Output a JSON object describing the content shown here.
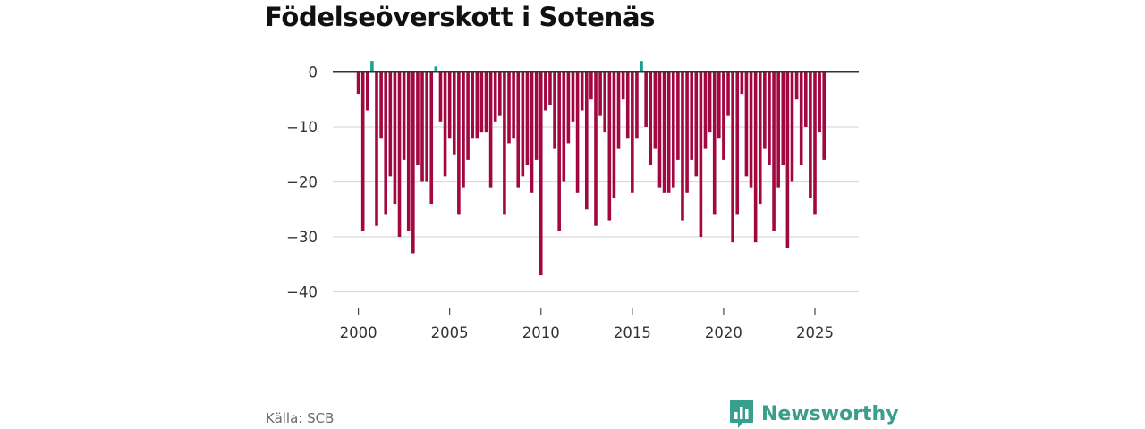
{
  "brand": {
    "name": "Newsworthy",
    "icon": "newsworthy-logo-icon",
    "color": "#3a9e8c"
  },
  "source": "Källa: SCB",
  "colors": {
    "negative": "#a3073f",
    "positive": "#1aa096",
    "grid": "#d9d9d9",
    "zero_line": "#333333"
  },
  "chart_data": {
    "type": "bar",
    "title": "Födelseöverskott i Sotenäs",
    "xlabel": "",
    "ylabel": "",
    "ylim": [
      -43,
      3
    ],
    "yticks": [
      0,
      -10,
      -20,
      -30,
      -40
    ],
    "ytick_labels": [
      "0",
      "−10",
      "−20",
      "−30",
      "−40"
    ],
    "xlim": [
      1998.6,
      2027.4
    ],
    "xticks": [
      2000,
      2005,
      2010,
      2015,
      2020,
      2025
    ],
    "xtick_labels": [
      "2000",
      "2005",
      "2010",
      "2015",
      "2020",
      "2025"
    ],
    "grid": true,
    "start": "2000-Q1",
    "frequency": "quarterly",
    "series": [
      {
        "name": "Födelseöverskott",
        "values": [
          -4,
          -29,
          -7,
          2,
          -28,
          -12,
          -26,
          -19,
          -24,
          -30,
          -16,
          -29,
          -33,
          -17,
          -20,
          -20,
          -24,
          1,
          -9,
          -19,
          -12,
          -15,
          -26,
          -21,
          -16,
          -12,
          -12,
          -11,
          -11,
          -21,
          -9,
          -8,
          -26,
          -13,
          -12,
          -21,
          -19,
          -17,
          -22,
          -16,
          -37,
          -7,
          -6,
          -14,
          -29,
          -20,
          -13,
          -9,
          -22,
          -7,
          -25,
          -5,
          -28,
          -8,
          -11,
          -27,
          -23,
          -14,
          -5,
          -12,
          -22,
          -12,
          2,
          -10,
          -17,
          -14,
          -21,
          -22,
          -22,
          -21,
          -16,
          -27,
          -22,
          -16,
          -19,
          -30,
          -14,
          -11,
          -26,
          -12,
          -16,
          -8,
          -31,
          -26,
          -4,
          -19,
          -21,
          -31,
          -24,
          -14,
          -17,
          -29,
          -21,
          -17,
          -32,
          -20,
          -5,
          -17,
          -10,
          -23,
          -26,
          -11,
          -16
        ]
      }
    ]
  }
}
